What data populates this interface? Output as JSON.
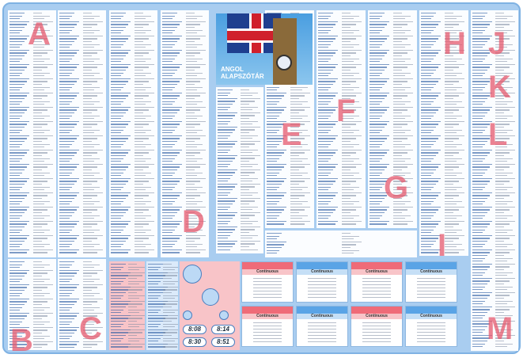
{
  "title": {
    "line1": "ANGOL",
    "line2": "ALAPSZÓTÁR"
  },
  "letters": [
    "A",
    "B",
    "C",
    "D",
    "E",
    "F",
    "G",
    "H",
    "I",
    "J",
    "K",
    "L",
    "M"
  ],
  "tenses": [
    {
      "sub": "Continuous",
      "style": "pink"
    },
    {
      "sub": "Continuous",
      "style": "blue"
    },
    {
      "sub": "Continuous",
      "style": "pink"
    },
    {
      "sub": "Continuous",
      "style": "blue"
    },
    {
      "sub": "Continuous",
      "style": "pink"
    },
    {
      "sub": "Continuous",
      "style": "blue"
    },
    {
      "sub": "Continuous",
      "style": "pink"
    },
    {
      "sub": "Continuous",
      "style": "blue"
    }
  ],
  "digital_times": [
    "8:08",
    "8:14",
    "8:30",
    "8:51"
  ],
  "colors": {
    "background": "#a9cdf0",
    "letter": "#e65a6e",
    "accent_pink": "#ef6b78",
    "accent_blue": "#5aa4e6"
  }
}
